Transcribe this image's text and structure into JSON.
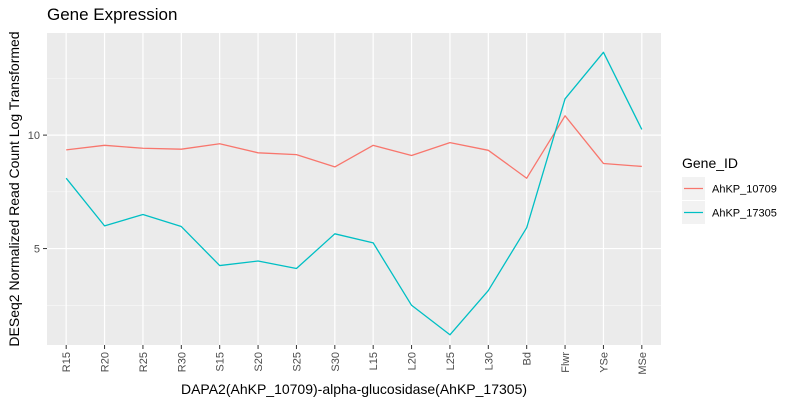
{
  "chart_data": {
    "type": "line",
    "title": "Gene Expression",
    "xlabel": "DAPA2(AhKP_10709)-alpha-glucosidase(AhKP_17305)",
    "ylabel": "DESeq2 Normalized Read Count Log Transformed",
    "categories": [
      "R15",
      "R20",
      "R25",
      "R30",
      "S15",
      "S20",
      "S25",
      "S30",
      "L15",
      "L20",
      "L25",
      "L30",
      "Bd",
      "Flwr",
      "YSe",
      "MSe"
    ],
    "ylim": [
      0.75,
      14.5
    ],
    "yticks": [
      5,
      10
    ],
    "grid": true,
    "legend": {
      "title": "Gene_ID",
      "placement": "right"
    },
    "series": [
      {
        "name": "AhKP_10709",
        "color": "#F8766D",
        "values": [
          9.35,
          9.55,
          9.42,
          9.38,
          9.62,
          9.22,
          9.14,
          8.6,
          9.55,
          9.1,
          9.67,
          9.33,
          8.1,
          10.85,
          8.75,
          8.62
        ]
      },
      {
        "name": "AhKP_17305",
        "color": "#00BFC4",
        "values": [
          8.1,
          6.0,
          6.5,
          5.97,
          4.25,
          4.45,
          4.12,
          5.65,
          5.25,
          2.5,
          1.2,
          3.15,
          5.92,
          11.6,
          13.65,
          10.25
        ]
      }
    ]
  },
  "colors": {
    "panel_background": "#EBEBEB",
    "grid_major": "#FFFFFF"
  }
}
